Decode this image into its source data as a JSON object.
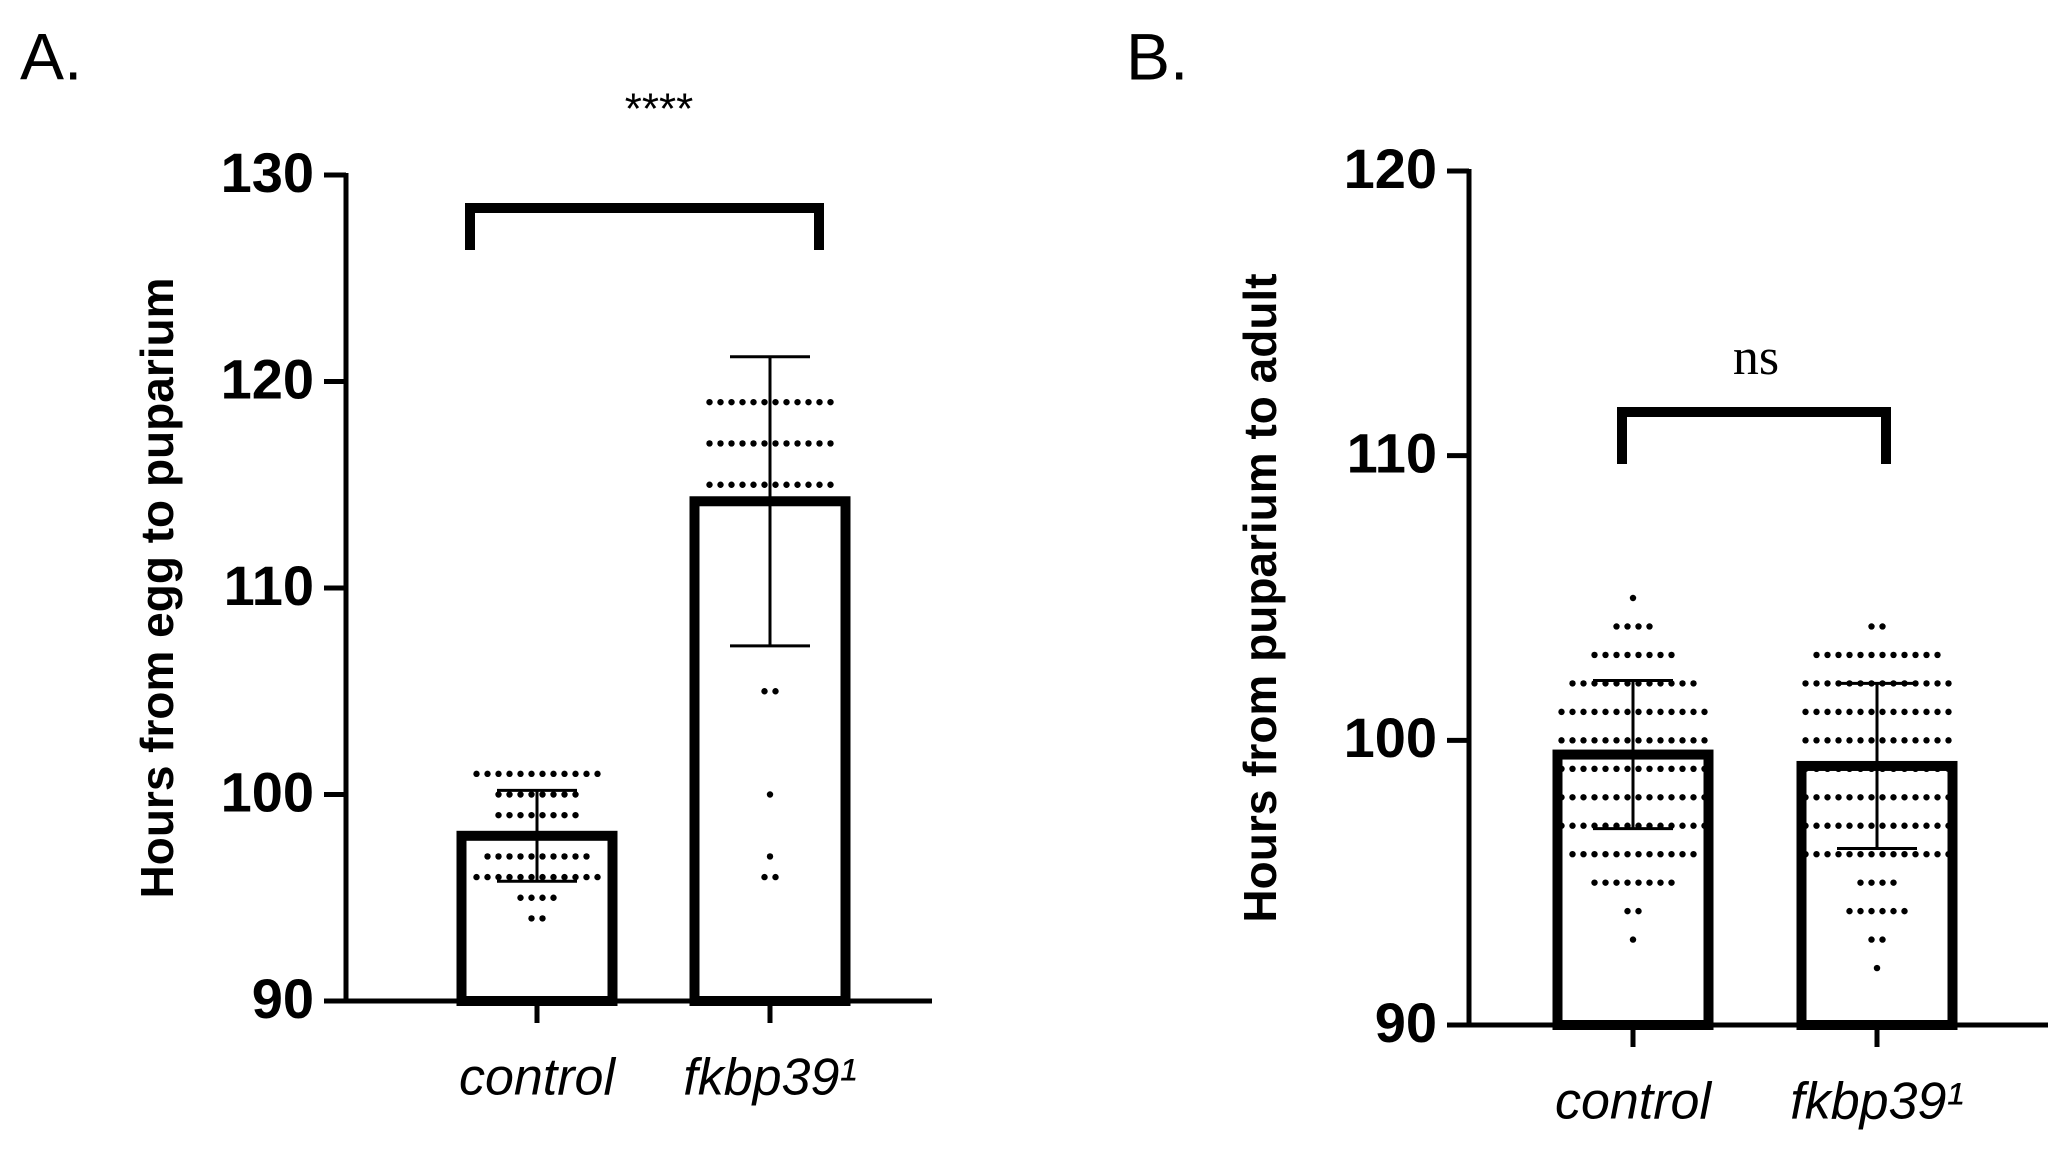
{
  "chart_data": [
    {
      "type": "bar",
      "panel_label": "A.",
      "ylabel": "Hours from egg to puparium",
      "annotation": "****",
      "categories": [
        "control",
        "fkbp39¹"
      ],
      "values": [
        98,
        114.2
      ],
      "errors": [
        2.2,
        7
      ],
      "points": [
        [
          101,
          101,
          101,
          101,
          101,
          101,
          101,
          101,
          101,
          101,
          101,
          101,
          100,
          100,
          100,
          100,
          100,
          100,
          100,
          100,
          99,
          99,
          99,
          99,
          99,
          99,
          99,
          99,
          98,
          98,
          98,
          98,
          98,
          98,
          98,
          98,
          98,
          98,
          97,
          97,
          97,
          97,
          97,
          97,
          97,
          97,
          97,
          97,
          96,
          96,
          96,
          96,
          96,
          96,
          96,
          96,
          96,
          96,
          96,
          96,
          95,
          95,
          95,
          95,
          94,
          94
        ],
        [
          119,
          119,
          119,
          119,
          119,
          119,
          119,
          119,
          119,
          119,
          119,
          119,
          117,
          117,
          117,
          117,
          117,
          117,
          117,
          117,
          117,
          117,
          117,
          117,
          115,
          115,
          115,
          115,
          115,
          115,
          115,
          115,
          115,
          115,
          115,
          115,
          105,
          105,
          100,
          97,
          96,
          96
        ]
      ],
      "color": "#000000",
      "ylim": [
        90,
        130
      ],
      "yticks": [
        90,
        100,
        110,
        120,
        130
      ]
    },
    {
      "type": "bar",
      "panel_label": "B.",
      "ylabel": "Hours from puparium to adult",
      "annotation": "ns",
      "categories": [
        "control",
        "fkbp39¹"
      ],
      "values": [
        99.5,
        99.1
      ],
      "errors": [
        2.6,
        2.9
      ],
      "points": [
        [
          105,
          104,
          104,
          104,
          104,
          103,
          103,
          103,
          103,
          103,
          103,
          103,
          103,
          102,
          102,
          102,
          102,
          102,
          102,
          102,
          102,
          102,
          102,
          102,
          102,
          101,
          101,
          101,
          101,
          101,
          101,
          101,
          101,
          101,
          101,
          101,
          101,
          101,
          101,
          100,
          100,
          100,
          100,
          100,
          100,
          100,
          100,
          100,
          100,
          100,
          100,
          100,
          100,
          99,
          99,
          99,
          99,
          99,
          99,
          99,
          99,
          99,
          99,
          99,
          99,
          99,
          99,
          98,
          98,
          98,
          98,
          98,
          98,
          98,
          98,
          98,
          98,
          98,
          98,
          98,
          98,
          97,
          97,
          97,
          97,
          97,
          97,
          97,
          97,
          97,
          97,
          97,
          97,
          97,
          97,
          96,
          96,
          96,
          96,
          96,
          96,
          96,
          96,
          96,
          96,
          96,
          96,
          95,
          95,
          95,
          95,
          95,
          95,
          95,
          95,
          94,
          94,
          93
        ],
        [
          104,
          104,
          103,
          103,
          103,
          103,
          103,
          103,
          103,
          103,
          103,
          103,
          103,
          103,
          102,
          102,
          102,
          102,
          102,
          102,
          102,
          102,
          102,
          102,
          102,
          102,
          102,
          102,
          101,
          101,
          101,
          101,
          101,
          101,
          101,
          101,
          101,
          101,
          101,
          101,
          101,
          101,
          100,
          100,
          100,
          100,
          100,
          100,
          100,
          100,
          100,
          100,
          100,
          100,
          100,
          100,
          99,
          99,
          99,
          99,
          99,
          99,
          99,
          99,
          99,
          99,
          99,
          99,
          99,
          99,
          98,
          98,
          98,
          98,
          98,
          98,
          98,
          98,
          98,
          98,
          98,
          98,
          98,
          98,
          97,
          97,
          97,
          97,
          97,
          97,
          97,
          97,
          97,
          97,
          97,
          97,
          97,
          97,
          96,
          96,
          96,
          96,
          96,
          96,
          96,
          96,
          96,
          96,
          96,
          96,
          96,
          96,
          95,
          95,
          95,
          95,
          94,
          94,
          94,
          94,
          94,
          94,
          93,
          93,
          92
        ]
      ],
      "color": "#000000",
      "ylim": [
        90,
        120
      ],
      "yticks": [
        90,
        100,
        110,
        120
      ]
    }
  ]
}
